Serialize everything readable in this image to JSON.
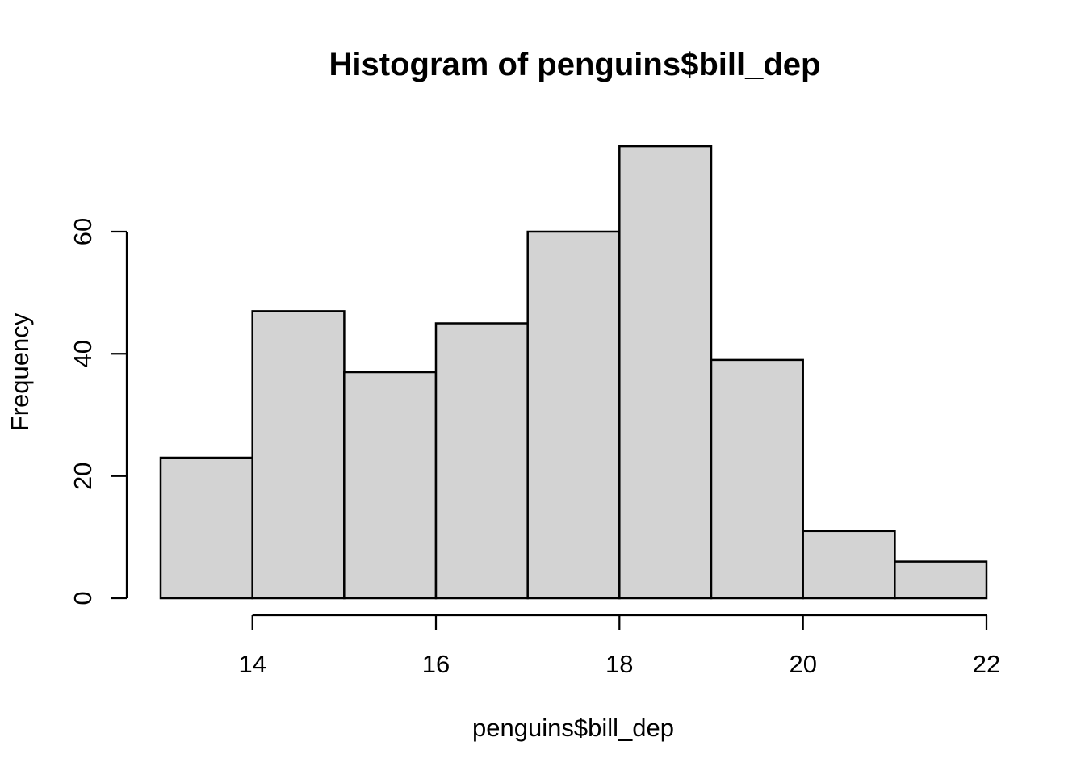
{
  "figure": {
    "background": "#ffffff"
  },
  "chart_data": {
    "type": "bar",
    "subtype": "histogram",
    "title": "Histogram of penguins$bill_dep",
    "xlabel": "penguins$bill_dep",
    "ylabel": "Frequency",
    "bin_breaks": [
      13,
      14,
      15,
      16,
      17,
      18,
      19,
      20,
      21,
      22
    ],
    "counts": [
      23,
      47,
      37,
      45,
      60,
      74,
      39,
      11,
      6
    ],
    "x_tick_values": [
      14,
      16,
      18,
      20,
      22
    ],
    "x_tick_labels": [
      "14",
      "16",
      "18",
      "20",
      "22"
    ],
    "y_tick_values": [
      0,
      20,
      40,
      60
    ],
    "y_tick_labels": [
      "0",
      "20",
      "40",
      "60"
    ],
    "xlim": [
      13,
      22
    ],
    "ylim": [
      0,
      74
    ],
    "grid": false,
    "legend": null,
    "colors": {
      "bar_fill": "#d3d3d3",
      "bar_border": "#000000",
      "axis": "#000000",
      "text": "#000000",
      "background": "#ffffff"
    }
  }
}
